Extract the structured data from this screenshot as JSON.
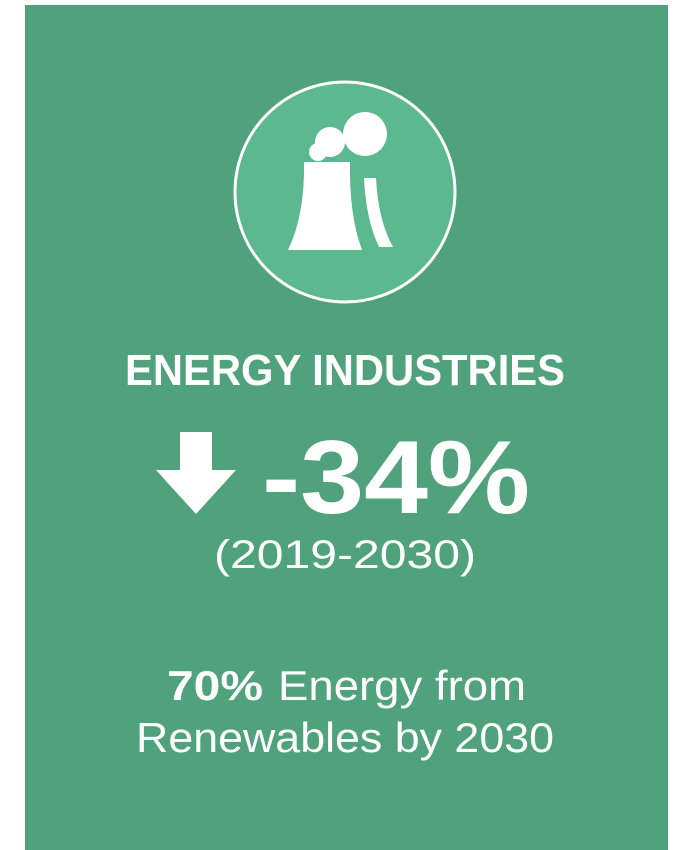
{
  "title": "ENERGY INDUSTRIES",
  "change": "-34%",
  "period": "(2019-2030)",
  "note": {
    "highlight": "70%",
    "lines": [
      "Energy from",
      "Renewables by 2030"
    ]
  }
}
